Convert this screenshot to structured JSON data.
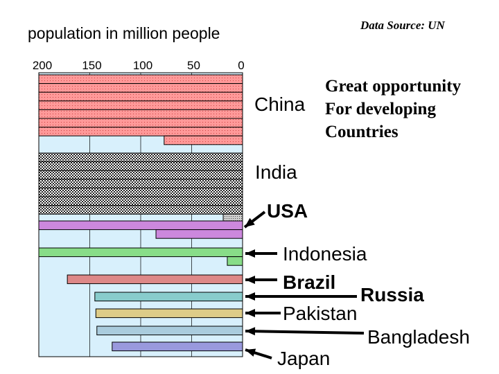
{
  "chart_data": {
    "type": "bar",
    "orientation": "horizontal-reversed",
    "title": "population in million people",
    "source": "Data Source: UN",
    "x_ticks": [
      "200",
      "150",
      "100",
      "50",
      "0"
    ],
    "xlim": [
      0,
      200
    ],
    "colors": {
      "china": "#ff9999",
      "india": "#dddddd",
      "usa": "#cccccc",
      "indonesia": "#cc88dd",
      "brazil": "#88dd88",
      "russia": "#dd8888",
      "pakistan": "#88cccc",
      "bangladesh": "#ddcc88",
      "japan": "#aaccdd",
      "last": "#9999dd",
      "background": "#d8f0fc"
    },
    "groups": [
      {
        "label": "China",
        "values": [
          200,
          200,
          200,
          200,
          200,
          200,
          200,
          77
        ]
      },
      {
        "label": "India",
        "values": [
          200,
          200,
          200,
          200,
          200,
          200,
          200,
          19
        ]
      },
      {
        "label": "USA",
        "values": [
          200,
          85
        ]
      },
      {
        "label": "Indonesia",
        "values": [
          200,
          15
        ]
      },
      {
        "label": "Brazil",
        "values": [
          172
        ]
      },
      {
        "label": "Russia",
        "values": [
          145
        ]
      },
      {
        "label": "Pakistan",
        "values": [
          144
        ]
      },
      {
        "label": "Bangladesh",
        "values": [
          143
        ]
      },
      {
        "label": "Japan",
        "values": [
          128
        ]
      }
    ],
    "annotation": [
      "Great opportunity",
      "For developing",
      "Countries"
    ]
  }
}
